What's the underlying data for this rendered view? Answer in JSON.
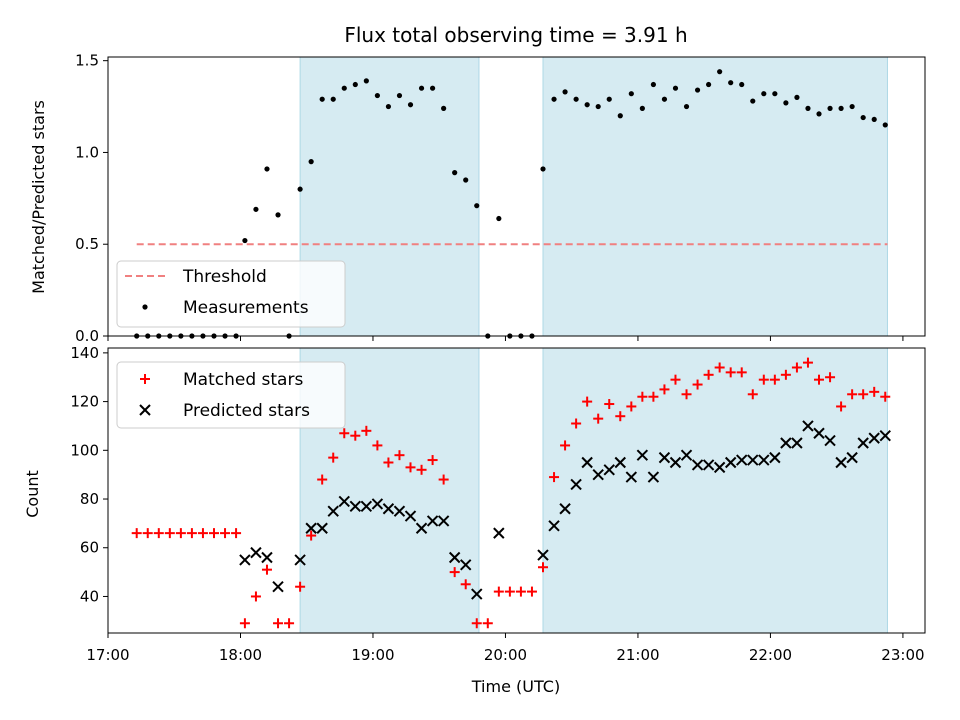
{
  "chart_data": [
    {
      "type": "scatter",
      "title": "Flux total observing time = 3.91 h",
      "xlabel": "",
      "ylabel": "Matched/Predicted stars",
      "ylim": [
        0,
        1.52
      ],
      "xlim": [
        "17:00",
        "23:10"
      ],
      "y_ticks": [
        "0.0",
        "0.5",
        "1.0",
        "1.5"
      ],
      "legend": {
        "position": "lower-left",
        "entries": [
          "Threshold",
          "Measurements"
        ]
      },
      "shaded_intervals": [
        [
          "18:27",
          "19:48"
        ],
        [
          "20:17",
          "22:53"
        ]
      ],
      "threshold": {
        "name": "Threshold",
        "value": 0.5,
        "x_start": "17:13",
        "x_end": "22:53",
        "color": "#f08080"
      },
      "series": [
        {
          "name": "Measurements",
          "color": "#000000",
          "points": [
            [
              "17:13",
              0
            ],
            [
              "17:18",
              0
            ],
            [
              "17:23",
              0
            ],
            [
              "17:28",
              0
            ],
            [
              "17:33",
              0
            ],
            [
              "17:38",
              0
            ],
            [
              "17:43",
              0
            ],
            [
              "17:48",
              0
            ],
            [
              "17:53",
              0
            ],
            [
              "17:58",
              0
            ],
            [
              "18:02",
              0.52
            ],
            [
              "18:07",
              0.69
            ],
            [
              "18:12",
              0.91
            ],
            [
              "18:17",
              0.66
            ],
            [
              "18:22",
              0
            ],
            [
              "18:27",
              0.8
            ],
            [
              "18:32",
              0.95
            ],
            [
              "18:37",
              1.29
            ],
            [
              "18:42",
              1.29
            ],
            [
              "18:47",
              1.35
            ],
            [
              "18:52",
              1.37
            ],
            [
              "18:57",
              1.39
            ],
            [
              "19:02",
              1.31
            ],
            [
              "19:07",
              1.25
            ],
            [
              "19:12",
              1.31
            ],
            [
              "19:17",
              1.26
            ],
            [
              "19:22",
              1.35
            ],
            [
              "19:27",
              1.35
            ],
            [
              "19:32",
              1.24
            ],
            [
              "19:37",
              0.89
            ],
            [
              "19:42",
              0.85
            ],
            [
              "19:47",
              0.71
            ],
            [
              "19:52",
              0
            ],
            [
              "19:57",
              0.64
            ],
            [
              "20:02",
              0
            ],
            [
              "20:07",
              0
            ],
            [
              "20:12",
              0
            ],
            [
              "20:17",
              0.91
            ],
            [
              "20:22",
              1.29
            ],
            [
              "20:27",
              1.33
            ],
            [
              "20:32",
              1.29
            ],
            [
              "20:37",
              1.26
            ],
            [
              "20:42",
              1.25
            ],
            [
              "20:47",
              1.29
            ],
            [
              "20:52",
              1.2
            ],
            [
              "20:57",
              1.32
            ],
            [
              "21:02",
              1.24
            ],
            [
              "21:07",
              1.37
            ],
            [
              "21:12",
              1.29
            ],
            [
              "21:17",
              1.35
            ],
            [
              "21:22",
              1.25
            ],
            [
              "21:27",
              1.34
            ],
            [
              "21:32",
              1.37
            ],
            [
              "21:37",
              1.44
            ],
            [
              "21:42",
              1.38
            ],
            [
              "21:47",
              1.37
            ],
            [
              "21:52",
              1.28
            ],
            [
              "21:57",
              1.32
            ],
            [
              "22:02",
              1.32
            ],
            [
              "22:07",
              1.27
            ],
            [
              "22:12",
              1.3
            ],
            [
              "22:17",
              1.24
            ],
            [
              "22:22",
              1.21
            ],
            [
              "22:27",
              1.24
            ],
            [
              "22:32",
              1.24
            ],
            [
              "22:37",
              1.25
            ],
            [
              "22:42",
              1.19
            ],
            [
              "22:47",
              1.18
            ],
            [
              "22:52",
              1.15
            ]
          ]
        }
      ]
    },
    {
      "type": "scatter",
      "title": "",
      "xlabel": "Time (UTC)",
      "ylabel": "Count",
      "ylim": [
        25,
        142
      ],
      "xlim": [
        "17:00",
        "23:10"
      ],
      "y_ticks": [
        "40",
        "60",
        "80",
        "100",
        "120",
        "140"
      ],
      "x_ticks": [
        "17:00",
        "18:00",
        "19:00",
        "20:00",
        "21:00",
        "22:00",
        "23:00"
      ],
      "legend": {
        "position": "top-left",
        "entries": [
          "Matched stars",
          "Predicted stars"
        ]
      },
      "shaded_intervals": [
        [
          "18:27",
          "19:48"
        ],
        [
          "20:17",
          "22:53"
        ]
      ],
      "series": [
        {
          "name": "Matched stars",
          "marker": "plus",
          "color": "#ff0000",
          "points": [
            [
              "17:13",
              66
            ],
            [
              "17:18",
              66
            ],
            [
              "17:23",
              66
            ],
            [
              "17:28",
              66
            ],
            [
              "17:33",
              66
            ],
            [
              "17:38",
              66
            ],
            [
              "17:43",
              66
            ],
            [
              "17:48",
              66
            ],
            [
              "17:53",
              66
            ],
            [
              "17:58",
              66
            ],
            [
              "18:02",
              29
            ],
            [
              "18:07",
              40
            ],
            [
              "18:12",
              51
            ],
            [
              "18:17",
              29
            ],
            [
              "18:22",
              29
            ],
            [
              "18:27",
              44
            ],
            [
              "18:32",
              65
            ],
            [
              "18:37",
              88
            ],
            [
              "18:42",
              97
            ],
            [
              "18:47",
              107
            ],
            [
              "18:52",
              106
            ],
            [
              "18:57",
              108
            ],
            [
              "19:02",
              102
            ],
            [
              "19:07",
              95
            ],
            [
              "19:12",
              98
            ],
            [
              "19:17",
              93
            ],
            [
              "19:22",
              92
            ],
            [
              "19:27",
              96
            ],
            [
              "19:32",
              88
            ],
            [
              "19:37",
              50
            ],
            [
              "19:42",
              45
            ],
            [
              "19:47",
              29
            ],
            [
              "19:52",
              29
            ],
            [
              "19:57",
              42
            ],
            [
              "20:02",
              42
            ],
            [
              "20:07",
              42
            ],
            [
              "20:12",
              42
            ],
            [
              "20:17",
              52
            ],
            [
              "20:22",
              89
            ],
            [
              "20:27",
              102
            ],
            [
              "20:32",
              111
            ],
            [
              "20:37",
              120
            ],
            [
              "20:42",
              113
            ],
            [
              "20:47",
              119
            ],
            [
              "20:52",
              114
            ],
            [
              "20:57",
              118
            ],
            [
              "21:02",
              122
            ],
            [
              "21:07",
              122
            ],
            [
              "21:12",
              125
            ],
            [
              "21:17",
              129
            ],
            [
              "21:22",
              123
            ],
            [
              "21:27",
              127
            ],
            [
              "21:32",
              131
            ],
            [
              "21:37",
              134
            ],
            [
              "21:42",
              132
            ],
            [
              "21:47",
              132
            ],
            [
              "21:52",
              123
            ],
            [
              "21:57",
              129
            ],
            [
              "22:02",
              129
            ],
            [
              "22:07",
              131
            ],
            [
              "22:12",
              134
            ],
            [
              "22:17",
              136
            ],
            [
              "22:22",
              129
            ],
            [
              "22:27",
              130
            ],
            [
              "22:32",
              118
            ],
            [
              "22:37",
              123
            ],
            [
              "22:42",
              123
            ],
            [
              "22:47",
              124
            ],
            [
              "22:52",
              122
            ]
          ]
        },
        {
          "name": "Predicted stars",
          "marker": "x",
          "color": "#000000",
          "points": [
            [
              "18:02",
              55
            ],
            [
              "18:07",
              58
            ],
            [
              "18:12",
              56
            ],
            [
              "18:17",
              44
            ],
            [
              "18:27",
              55
            ],
            [
              "18:32",
              68
            ],
            [
              "18:37",
              68
            ],
            [
              "18:42",
              75
            ],
            [
              "18:47",
              79
            ],
            [
              "18:52",
              77
            ],
            [
              "18:57",
              77
            ],
            [
              "19:02",
              78
            ],
            [
              "19:07",
              76
            ],
            [
              "19:12",
              75
            ],
            [
              "19:17",
              73
            ],
            [
              "19:22",
              68
            ],
            [
              "19:27",
              71
            ],
            [
              "19:32",
              71
            ],
            [
              "19:37",
              56
            ],
            [
              "19:42",
              53
            ],
            [
              "19:47",
              41
            ],
            [
              "19:57",
              66
            ],
            [
              "20:17",
              57
            ],
            [
              "20:22",
              69
            ],
            [
              "20:27",
              76
            ],
            [
              "20:32",
              86
            ],
            [
              "20:37",
              95
            ],
            [
              "20:42",
              90
            ],
            [
              "20:47",
              92
            ],
            [
              "20:52",
              95
            ],
            [
              "20:57",
              89
            ],
            [
              "21:02",
              98
            ],
            [
              "21:07",
              89
            ],
            [
              "21:12",
              97
            ],
            [
              "21:17",
              95
            ],
            [
              "21:22",
              98
            ],
            [
              "21:27",
              94
            ],
            [
              "21:32",
              94
            ],
            [
              "21:37",
              93
            ],
            [
              "21:42",
              95
            ],
            [
              "21:47",
              96
            ],
            [
              "21:52",
              96
            ],
            [
              "21:57",
              96
            ],
            [
              "22:02",
              97
            ],
            [
              "22:07",
              103
            ],
            [
              "22:12",
              103
            ],
            [
              "22:17",
              110
            ],
            [
              "22:22",
              107
            ],
            [
              "22:27",
              104
            ],
            [
              "22:32",
              95
            ],
            [
              "22:37",
              97
            ],
            [
              "22:42",
              103
            ],
            [
              "22:47",
              105
            ],
            [
              "22:52",
              106
            ]
          ]
        }
      ]
    }
  ]
}
